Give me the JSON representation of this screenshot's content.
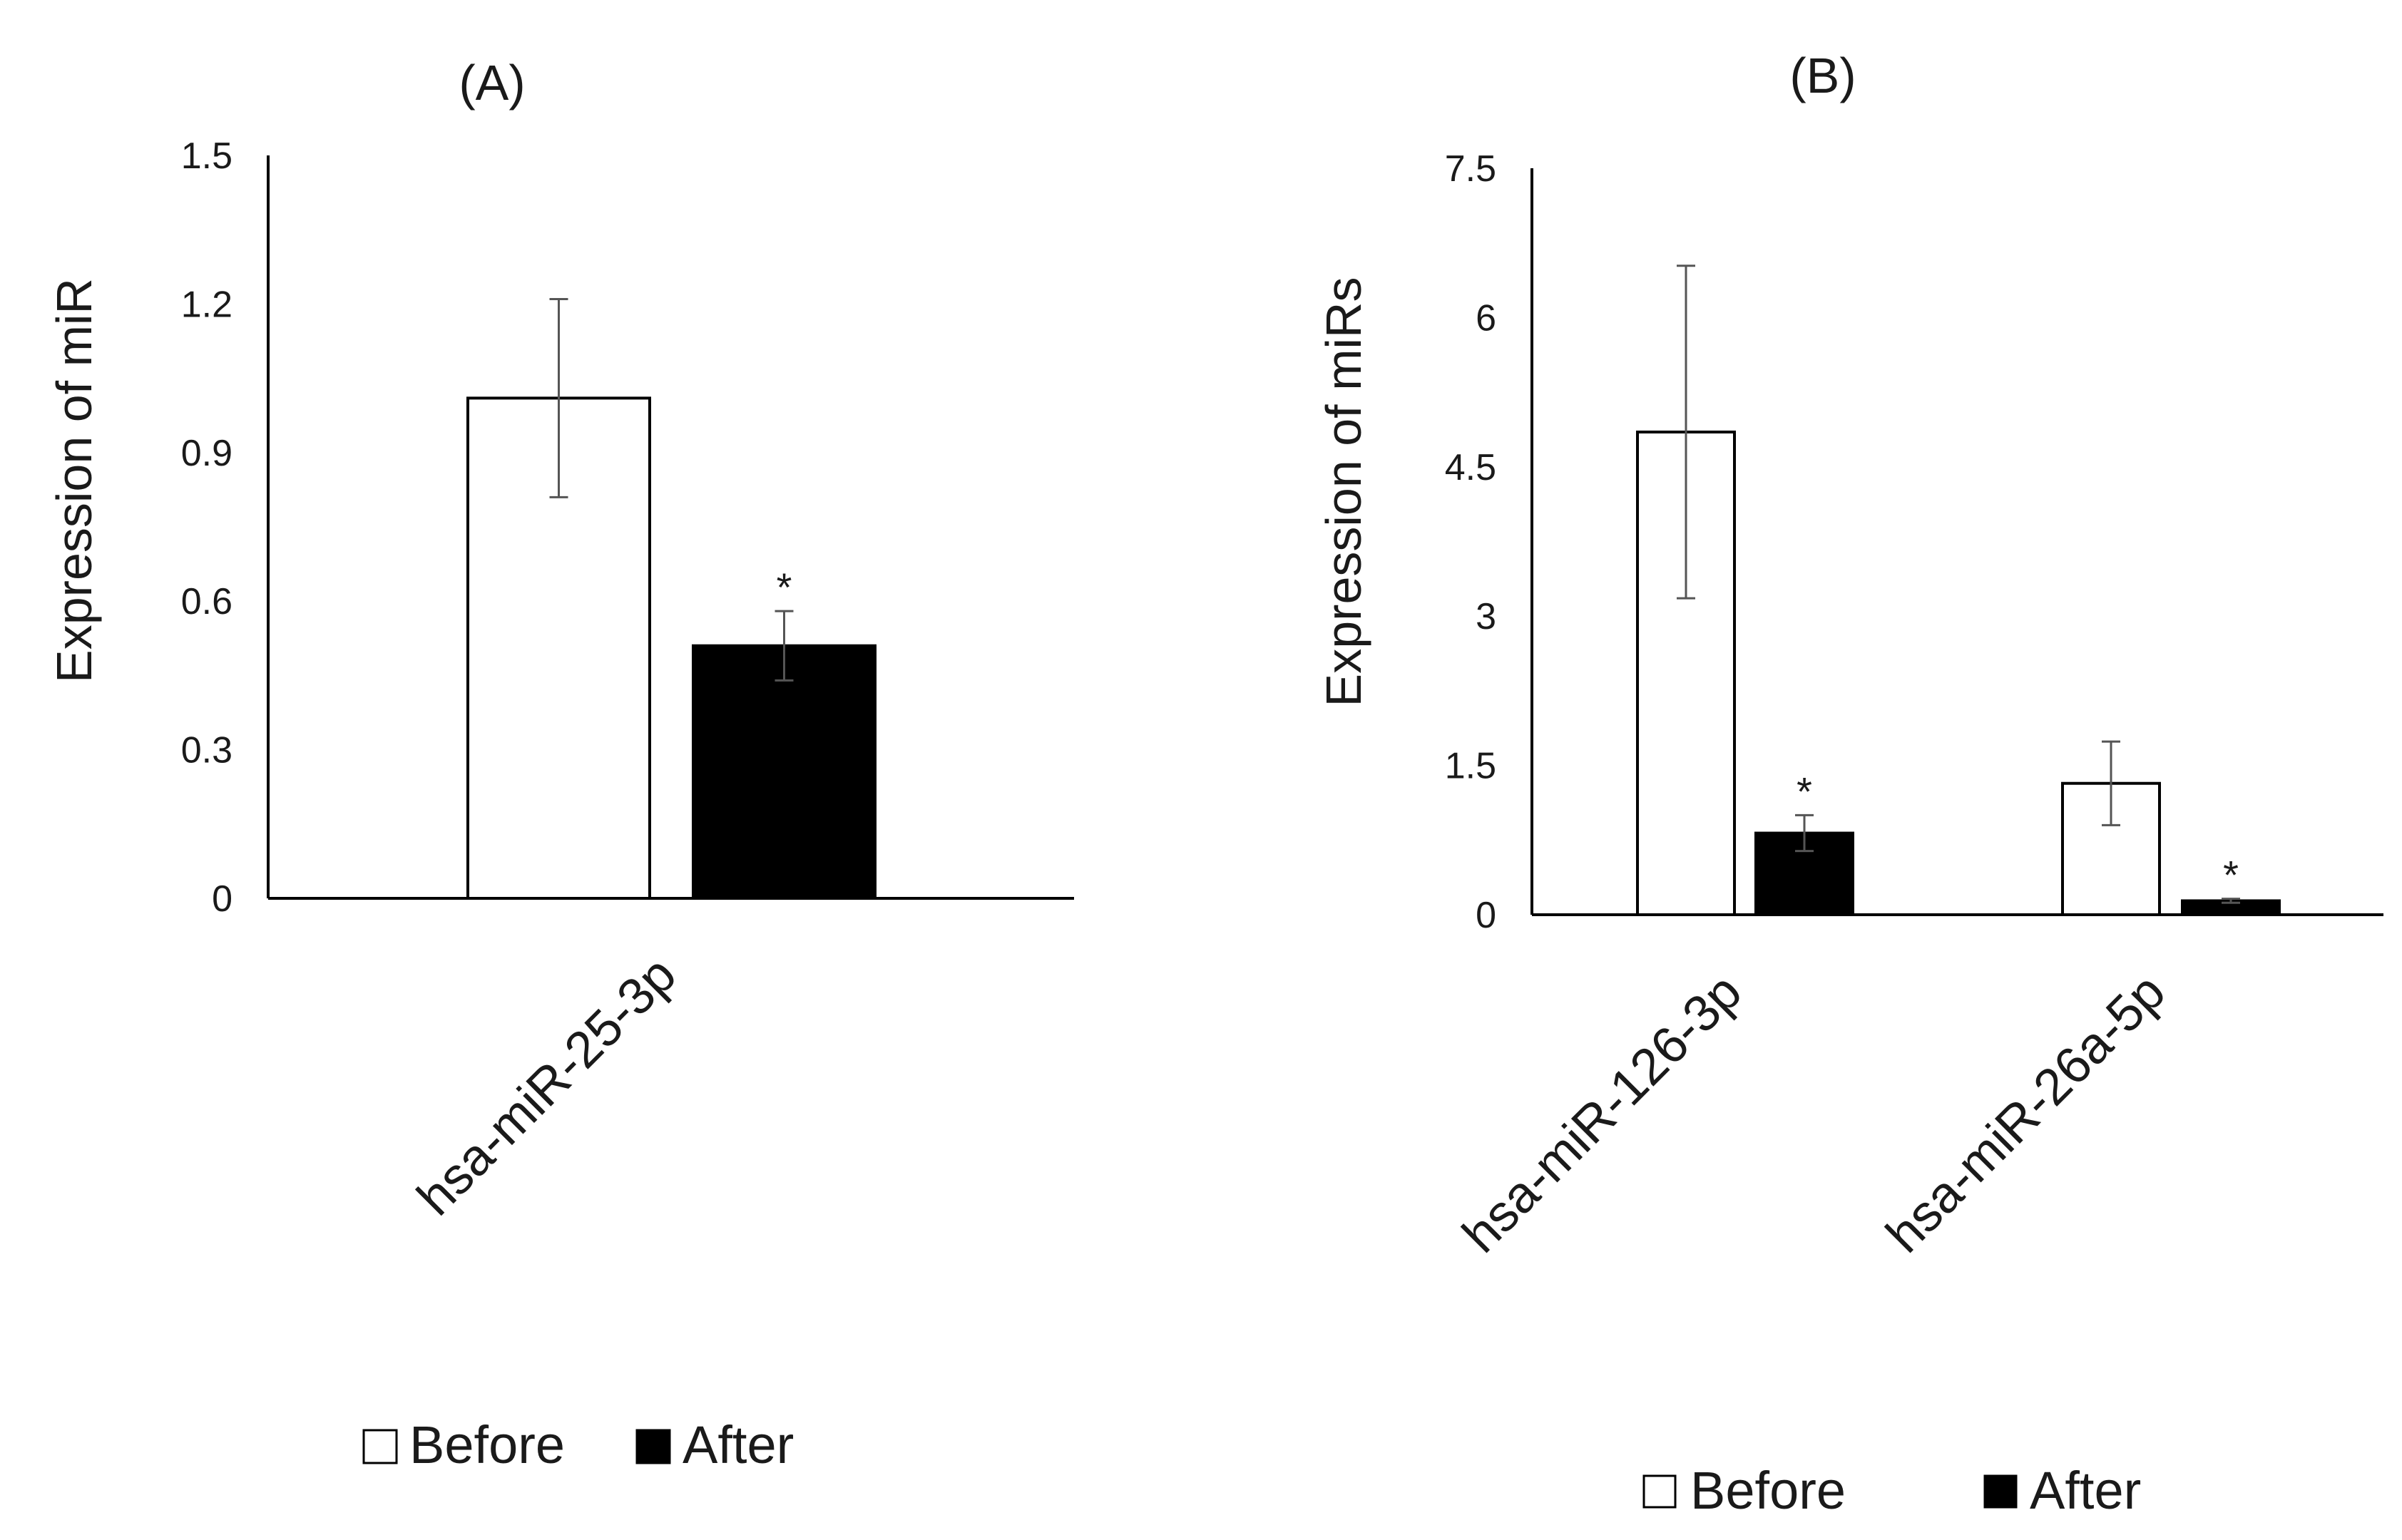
{
  "chart_data": [
    {
      "panel_label": "(A)",
      "type": "bar",
      "categories": [
        "hsa-miR-25-3p"
      ],
      "series": [
        {
          "name": "Before",
          "values": [
            1.01
          ],
          "errors": [
            0.2
          ]
        },
        {
          "name": "After",
          "values": [
            0.51
          ],
          "errors": [
            0.07
          ]
        }
      ],
      "significance": [
        [
          "",
          "*"
        ]
      ],
      "ylabel": "Expression of miR",
      "xlabel": "",
      "ylim": [
        0,
        1.5
      ],
      "yticks": [
        "0",
        "0.3",
        "0.6",
        "0.9",
        "1.2",
        "1.5"
      ],
      "legend": [
        "Before",
        "After"
      ],
      "legend_position": "bottom"
    },
    {
      "panel_label": "(B)",
      "type": "bar",
      "categories": [
        "hsa-miR-126-3p",
        "hsa-miR-26a-5p"
      ],
      "series": [
        {
          "name": "Before",
          "values": [
            4.85,
            1.32
          ],
          "errors": [
            1.67,
            0.42
          ]
        },
        {
          "name": "After",
          "values": [
            0.82,
            0.14
          ],
          "errors": [
            0.18,
            0.02
          ]
        }
      ],
      "significance": [
        [
          "",
          "*"
        ],
        [
          "",
          "*"
        ]
      ],
      "ylabel": "Expression of miRs",
      "xlabel": "",
      "ylim": [
        0,
        7.5
      ],
      "yticks": [
        "0",
        "1.5",
        "3",
        "4.5",
        "6",
        "7.5"
      ],
      "legend": [
        "Before",
        "After"
      ],
      "legend_position": "bottom"
    }
  ],
  "colors": {
    "before_fill": "#ffffff",
    "after_fill": "#000000",
    "axis": "#000000",
    "error_bar": "#555555"
  }
}
